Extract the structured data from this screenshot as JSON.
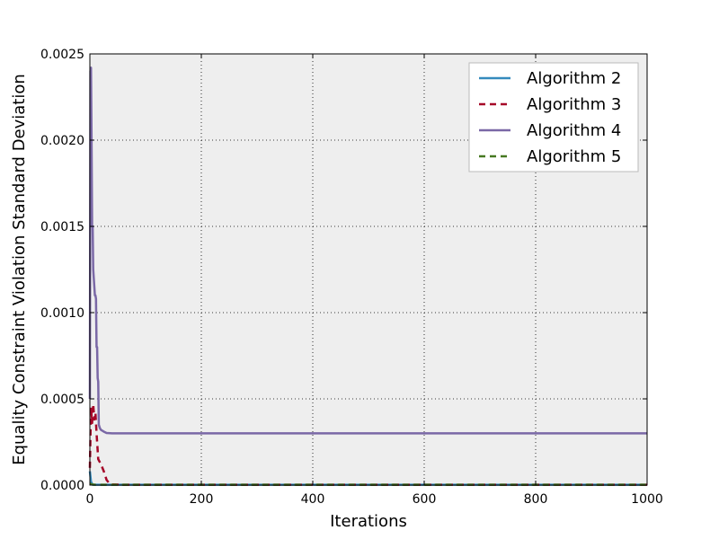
{
  "chart_data": {
    "type": "line",
    "xlabel": "Iterations",
    "ylabel": "Equality Constraint Violation Standard Deviation",
    "xlim": [
      0,
      1000
    ],
    "ylim": [
      0,
      0.0025
    ],
    "x_ticks": [
      0,
      200,
      400,
      600,
      800,
      1000
    ],
    "x_tick_labels": [
      "0",
      "200",
      "400",
      "600",
      "800",
      "1000"
    ],
    "y_ticks": [
      0,
      0.0005,
      0.001,
      0.0015,
      0.002,
      0.0025
    ],
    "y_tick_labels": [
      "0.0000",
      "0.0005",
      "0.0010",
      "0.0015",
      "0.0020",
      "0.0025"
    ],
    "grid": true,
    "legend_position": "top-right",
    "series": [
      {
        "name": "Algorithm 2",
        "color": "#348abd",
        "dash": "solid",
        "x": [
          0,
          2,
          5,
          1000
        ],
        "y": [
          8e-05,
          2e-05,
          2e-06,
          2e-06
        ]
      },
      {
        "name": "Algorithm 3",
        "color": "#a60628",
        "dash": "dashed",
        "x": [
          0,
          2,
          4,
          6,
          8,
          10,
          12,
          15,
          20,
          25,
          30,
          35,
          40,
          60,
          100,
          1000
        ],
        "y": [
          0.0001,
          0.00045,
          0.00036,
          0.00047,
          0.00038,
          0.00042,
          0.0003,
          0.00015,
          0.00012,
          8e-05,
          3e-05,
          1e-05,
          4e-06,
          2e-06,
          2e-06,
          2e-06
        ]
      },
      {
        "name": "Algorithm 4",
        "color": "#7a68a6",
        "dash": "solid",
        "x": [
          0,
          1,
          2,
          3,
          4,
          5,
          6,
          7,
          8,
          9,
          10,
          11,
          12,
          13,
          14,
          15,
          16,
          18,
          20,
          25,
          30,
          40,
          60,
          100,
          200,
          1000
        ],
        "y": [
          0.0005,
          0.0024,
          0.00242,
          0.002,
          0.0015,
          0.0015,
          0.00125,
          0.0012,
          0.00115,
          0.0011,
          0.0011,
          0.00108,
          0.0008,
          0.0008,
          0.00062,
          0.0006,
          0.00035,
          0.00033,
          0.00032,
          0.00031,
          0.000302,
          0.0003,
          0.0003,
          0.0003,
          0.0003,
          0.0003
        ]
      },
      {
        "name": "Algorithm 5",
        "color": "#467821",
        "dash": "dashed",
        "x": [
          0,
          2,
          5,
          10,
          1000
        ],
        "y": [
          1e-05,
          6e-06,
          3e-06,
          2e-06,
          2e-06
        ]
      }
    ]
  }
}
